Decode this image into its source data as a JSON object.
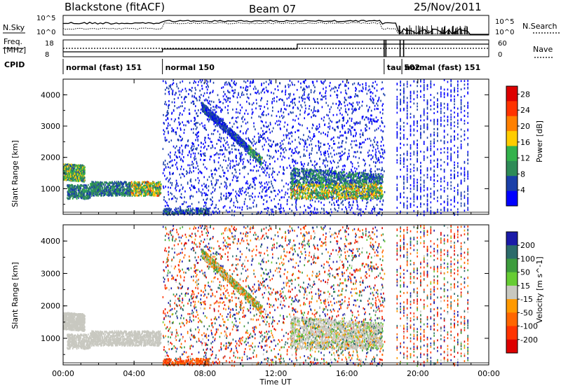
{
  "header": {
    "station": "Blackstone (fitACF)",
    "beam": "Beam 07",
    "date": "25/Nov/2011"
  },
  "top_panels": {
    "nsky_label": "N.Sky",
    "nsearch_label": "N.Search",
    "noise_ticks_left": [
      "10^5",
      "10^0"
    ],
    "noise_ticks_right": [
      "10^5",
      "10^0"
    ],
    "freq_label_1": "Freq.",
    "freq_label_2": "[MHz]",
    "freq_ticks": [
      "18",
      "8"
    ],
    "nave_label": "Nave",
    "nave_ticks": [
      "60",
      "0"
    ],
    "cpid_label": "CPID",
    "cpid_segments": [
      {
        "label": "normal (fast) 151",
        "start_h": 0.0,
        "end_h": 5.6
      },
      {
        "label": "normal 150",
        "start_h": 5.6,
        "end_h": 18.1
      },
      {
        "label": "tau 502",
        "start_h": 18.1,
        "end_h": 19.1
      },
      {
        "label": "normal (fast) 151",
        "start_h": 19.1,
        "end_h": 24.0
      }
    ]
  },
  "chart_data": [
    {
      "type": "heatmap",
      "title": "",
      "ylabel": "Slant Range [km]",
      "xlabel": "Time UT",
      "xlim_hours": [
        0,
        24
      ],
      "ylim_km": [
        180,
        4500
      ],
      "x_ticks": [
        "00:00",
        "04:00",
        "08:00",
        "12:00",
        "16:00",
        "20:00",
        "00:00"
      ],
      "y_ticks": [
        "1000",
        "2000",
        "3000",
        "4000"
      ],
      "colorbar": {
        "label": "Power [dB]",
        "ticks": [
          "4",
          "8",
          "12",
          "16",
          "20",
          "24",
          "28"
        ],
        "range": [
          0,
          30
        ],
        "colors": [
          "#0000ff",
          "#1a3fa8",
          "#2e8b57",
          "#33b24c",
          "#ffcc00",
          "#ff8000",
          "#ff3300",
          "#dd0000"
        ]
      },
      "features": [
        {
          "name": "echo band",
          "t0": 0.0,
          "t1": 1.2,
          "r0": 1300,
          "r1": 1850,
          "level": 14
        },
        {
          "name": "echo band",
          "t0": 0.3,
          "t1": 5.5,
          "r0": 600,
          "r1": 1200,
          "level": 16
        },
        {
          "name": "echo arc",
          "t0": 8.0,
          "t1": 11.0,
          "r0": 1900,
          "r1": 3700,
          "level": 6
        },
        {
          "name": "echo band",
          "t0": 12.8,
          "t1": 18.0,
          "r0": 700,
          "r1": 1700,
          "level": 14
        }
      ]
    },
    {
      "type": "heatmap",
      "title": "",
      "ylabel": "Slant Range [km]",
      "xlabel": "Time UT",
      "xlim_hours": [
        0,
        24
      ],
      "ylim_km": [
        180,
        4500
      ],
      "x_ticks": [
        "00:00",
        "04:00",
        "08:00",
        "12:00",
        "16:00",
        "20:00",
        "00:00"
      ],
      "y_ticks": [
        "1000",
        "2000",
        "3000",
        "4000"
      ],
      "colorbar": {
        "label": "Velocity [m s^-1]",
        "ticks": [
          "200",
          "100",
          "50",
          "15",
          "-15",
          "-50",
          "-100",
          "-200"
        ],
        "range": [
          -250,
          250
        ],
        "colors": [
          "#1a1aa8",
          "#2c6b6b",
          "#3d9c3d",
          "#66cc33",
          "#c8c8c0",
          "#ff9900",
          "#ff6600",
          "#ff3300",
          "#dd0000"
        ]
      }
    }
  ],
  "time_axis_label": "Time UT"
}
